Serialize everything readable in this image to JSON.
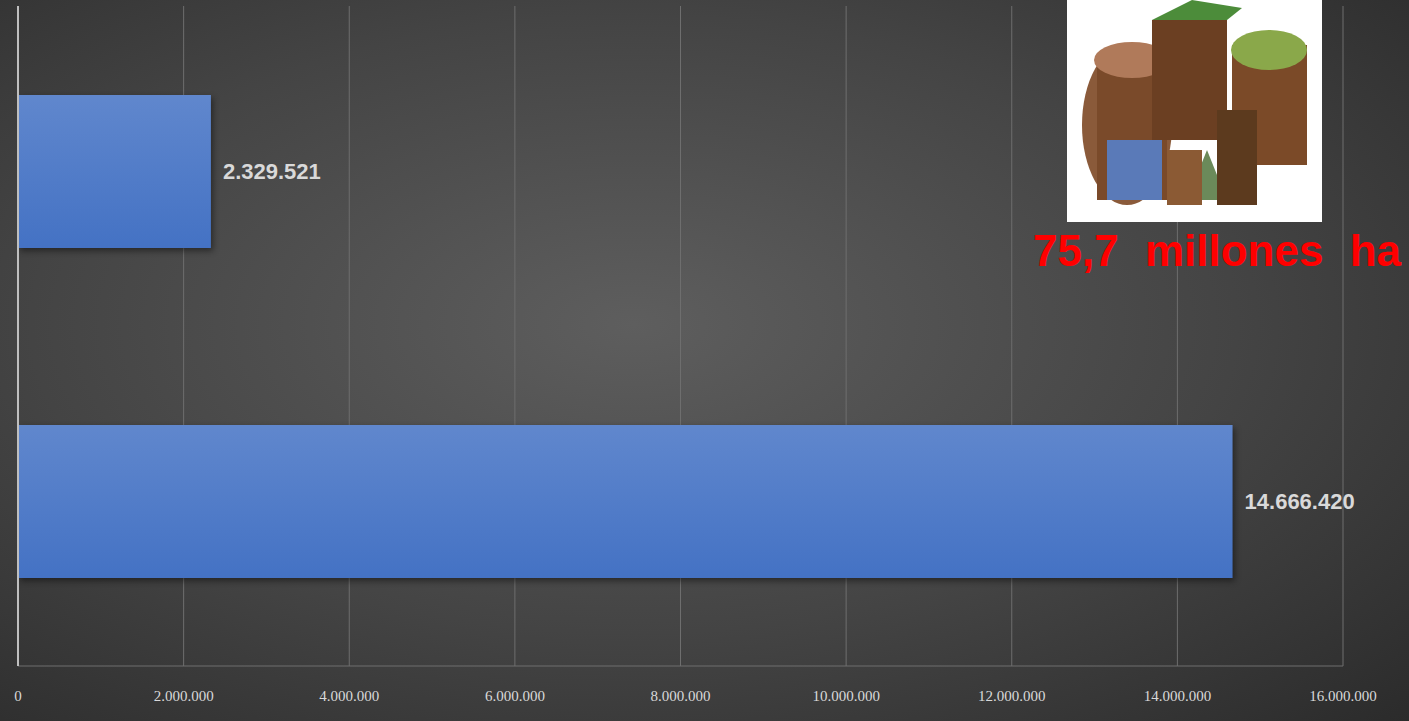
{
  "chart_data": {
    "type": "bar",
    "orientation": "horizontal",
    "categories": [
      null,
      null
    ],
    "values": [
      2329521,
      14666420
    ],
    "value_labels": [
      "2.329.521",
      "14.666.420"
    ],
    "data_labels": true,
    "color": "#4472c4",
    "xlim": [
      0,
      16000000
    ],
    "xticks": [
      0,
      {
        "value": 2000000,
        "label": "2.000.000"
      },
      {
        "value": 4000000,
        "label": "4.000.000"
      },
      {
        "value": 6000000,
        "label": "6.000.000"
      },
      {
        "value": 8000000,
        "label": "8.000.000"
      },
      {
        "value": 10000000,
        "label": "10.000.000"
      },
      {
        "value": 12000000,
        "label": "12.000.000"
      },
      {
        "value": 14000000,
        "label": "14.000.000"
      },
      {
        "value": 16000000,
        "label": "16.000.000"
      }
    ],
    "grid": true,
    "annotations": [
      "75,7 millones ha"
    ]
  }
}
